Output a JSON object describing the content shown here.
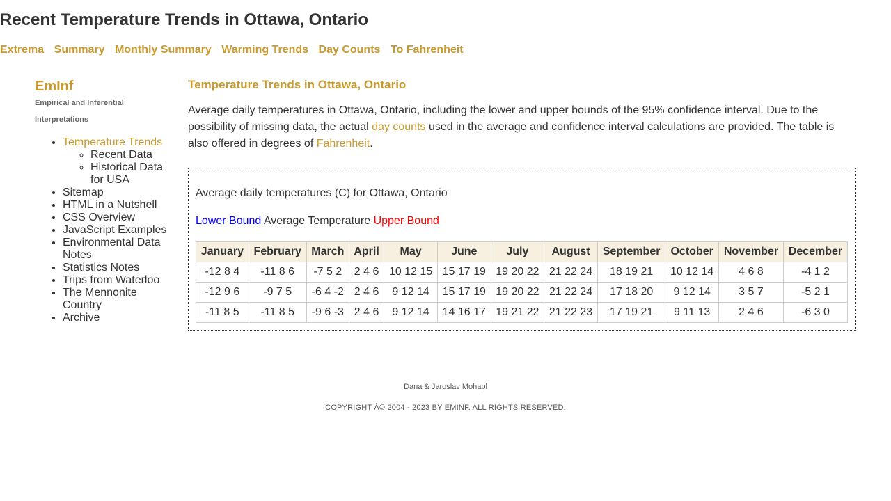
{
  "header": {
    "title": "Recent Temperature Trends in Ottawa, Ontario"
  },
  "nav": {
    "items": [
      "Extrema",
      "Summary",
      "Monthly Summary",
      "Warming Trends",
      "Day Counts",
      "To Fahrenheit"
    ]
  },
  "sidebar": {
    "brand": "EmInf",
    "tagline": "Empirical and Inferential Interpretations",
    "items": [
      {
        "label": "Temperature Trends",
        "children": [
          "Recent Data",
          "Historical Data for USA"
        ]
      },
      {
        "label": "Sitemap"
      },
      {
        "label": "HTML in a Nutshell"
      },
      {
        "label": "CSS Overview"
      },
      {
        "label": "JavaScript Examples"
      },
      {
        "label": "Environmental Data Notes"
      },
      {
        "label": "Statistics Notes"
      },
      {
        "label": "Trips from Waterloo"
      },
      {
        "label": "The Mennonite Country"
      },
      {
        "label": "Archive"
      }
    ]
  },
  "main": {
    "section_title": "Temperature Trends in Ottawa, Ontario",
    "intro": {
      "part1": "Average daily temperatures in Ottawa, Ontario, including the lower and upper bounds of the 95% confidence interval. Due to the possibility of missing data, the actual ",
      "link1": "day counts",
      "part2": " used in the average and confidence interval calculations are provided. The table is also offered in degrees of ",
      "link2": "Fahrenheit",
      "part3": "."
    },
    "table": {
      "caption": "Average daily temperatures (C) for Ottawa, Ontario",
      "legend": {
        "lower": "Lower Bound",
        "avg": "Average Temperature",
        "upper": "Upper Bound"
      },
      "headers": [
        "January",
        "February",
        "March",
        "April",
        "May",
        "June",
        "July",
        "August",
        "September",
        "October",
        "November",
        "December"
      ],
      "rows": [
        [
          "-12 8 4",
          "-11 8 6",
          "-7 5 2",
          "2 4 6",
          "10 12 15",
          "15 17 19",
          "19 20 22",
          "21 22 24",
          "18 19 21",
          "10 12 14",
          "4 6 8",
          "-4 1 2"
        ],
        [
          "-12 9 6",
          "-9 7 5",
          "-6 4 -2",
          "2 4 6",
          "9 12 14",
          "15 17 19",
          "19 20 22",
          "21 22 24",
          "17 18 20",
          "9 12 14",
          "3 5 7",
          "-5 2 1"
        ],
        [
          "-11 8 5",
          "-11 8 5",
          "-9 6 -3",
          "2 4 6",
          "9 12 14",
          "14 16 17",
          "19 21 22",
          "21 22 23",
          "17 19 21",
          "9 11 13",
          "2 4 6",
          "-6 3 0"
        ]
      ]
    }
  },
  "footer": {
    "authors": "Dana & Jaroslav Mohapl",
    "copyright": "COPYRIGHT Â© 2004 - 2023 BY EMINF. ALL RIGHTS RESERVED."
  },
  "colors": {
    "accent": "#c99a2e",
    "lower_bound": "#0000ff",
    "upper_bound": "#ff0000",
    "table_header_bg": "#f7efe0"
  }
}
